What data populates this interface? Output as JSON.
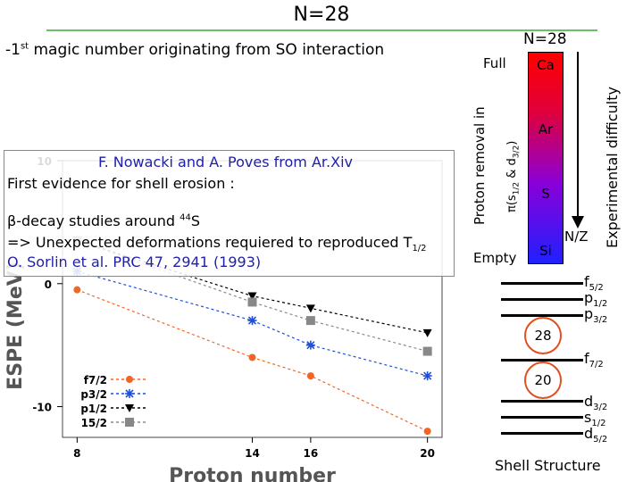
{
  "slide": {
    "title": "N=28",
    "intro_prefix": "-1",
    "intro_sup": "st",
    "intro_rest": " magic number originating from SO interaction"
  },
  "info_box": {
    "reference_1": "F. Nowacki and A. Poves from Ar.Xiv",
    "evidence": "First evidence for shell erosion :",
    "beta_prefix": "β-decay studies around ",
    "beta_sup": "44",
    "beta_suffix": "S",
    "unexpected_main": "=> Unexpected deformations requiered to reproduced  T",
    "unexpected_sub": "1/2",
    "reference_2": "O. Sorlin et al. PRC 47, 2941 (1993)"
  },
  "side_panel": {
    "n_label": "N=28",
    "full_label": "Full",
    "empty_label": "Empty",
    "proton_removal_label": "Proton removal in",
    "orbital_pi": "π(s",
    "orbital_sub1": "1/2",
    "orbital_mid": " & d",
    "orbital_sub2": "3/2",
    "orbital_end": ")",
    "experimental_label": "Experimental difficulty",
    "nz_label": "N/Z",
    "isotones": [
      "Ca",
      "Ar",
      "S",
      "Si"
    ],
    "gradient_colors": [
      "#ff0000",
      "#8a00d8",
      "#2020ff"
    ]
  },
  "shell_structure": {
    "caption": "Shell Structure",
    "magic_numbers": [
      "28",
      "20"
    ],
    "upper_levels": [
      {
        "main": "f",
        "sub": "5/2"
      },
      {
        "main": "p",
        "sub": "1/2"
      },
      {
        "main": "p",
        "sub": "3/2"
      }
    ],
    "middle_level": {
      "main": "f",
      "sub": "7/2"
    },
    "lower_levels": [
      {
        "main": "d",
        "sub": "3/2"
      },
      {
        "main": "s",
        "sub": "1/2"
      },
      {
        "main": "d",
        "sub": "5/2"
      }
    ]
  },
  "chart_data": {
    "type": "line",
    "xlabel": "Proton number",
    "ylabel": "ESPE (MeV)",
    "x_ticks": [
      8,
      14,
      16,
      20
    ],
    "y_ticks": [
      10,
      0,
      -10
    ],
    "xlim": [
      7.5,
      20.5
    ],
    "ylim": [
      -12.5,
      10
    ],
    "legend": "bottom-left",
    "series": [
      {
        "name": "f7/2",
        "color": "#f26522",
        "marker": "circle",
        "x": [
          8,
          14,
          16,
          20
        ],
        "y": [
          -0.5,
          -6.0,
          -7.5,
          -12.0
        ]
      },
      {
        "name": "p3/2",
        "color": "#1f4fd6",
        "marker": "star",
        "x": [
          8,
          14,
          16,
          20
        ],
        "y": [
          1.0,
          -3.0,
          -5.0,
          -7.5
        ]
      },
      {
        "name": "p1/2",
        "color": "#000000",
        "marker": "triangle",
        "x": [
          8,
          14,
          16,
          20
        ],
        "y": [
          3.5,
          -1.0,
          -2.0,
          -4.0
        ]
      },
      {
        "name": "15/2",
        "color": "#888888",
        "marker": "square",
        "x": [
          8,
          14,
          16,
          20
        ],
        "y": [
          3.5,
          -1.5,
          -3.0,
          -5.5
        ]
      }
    ]
  }
}
